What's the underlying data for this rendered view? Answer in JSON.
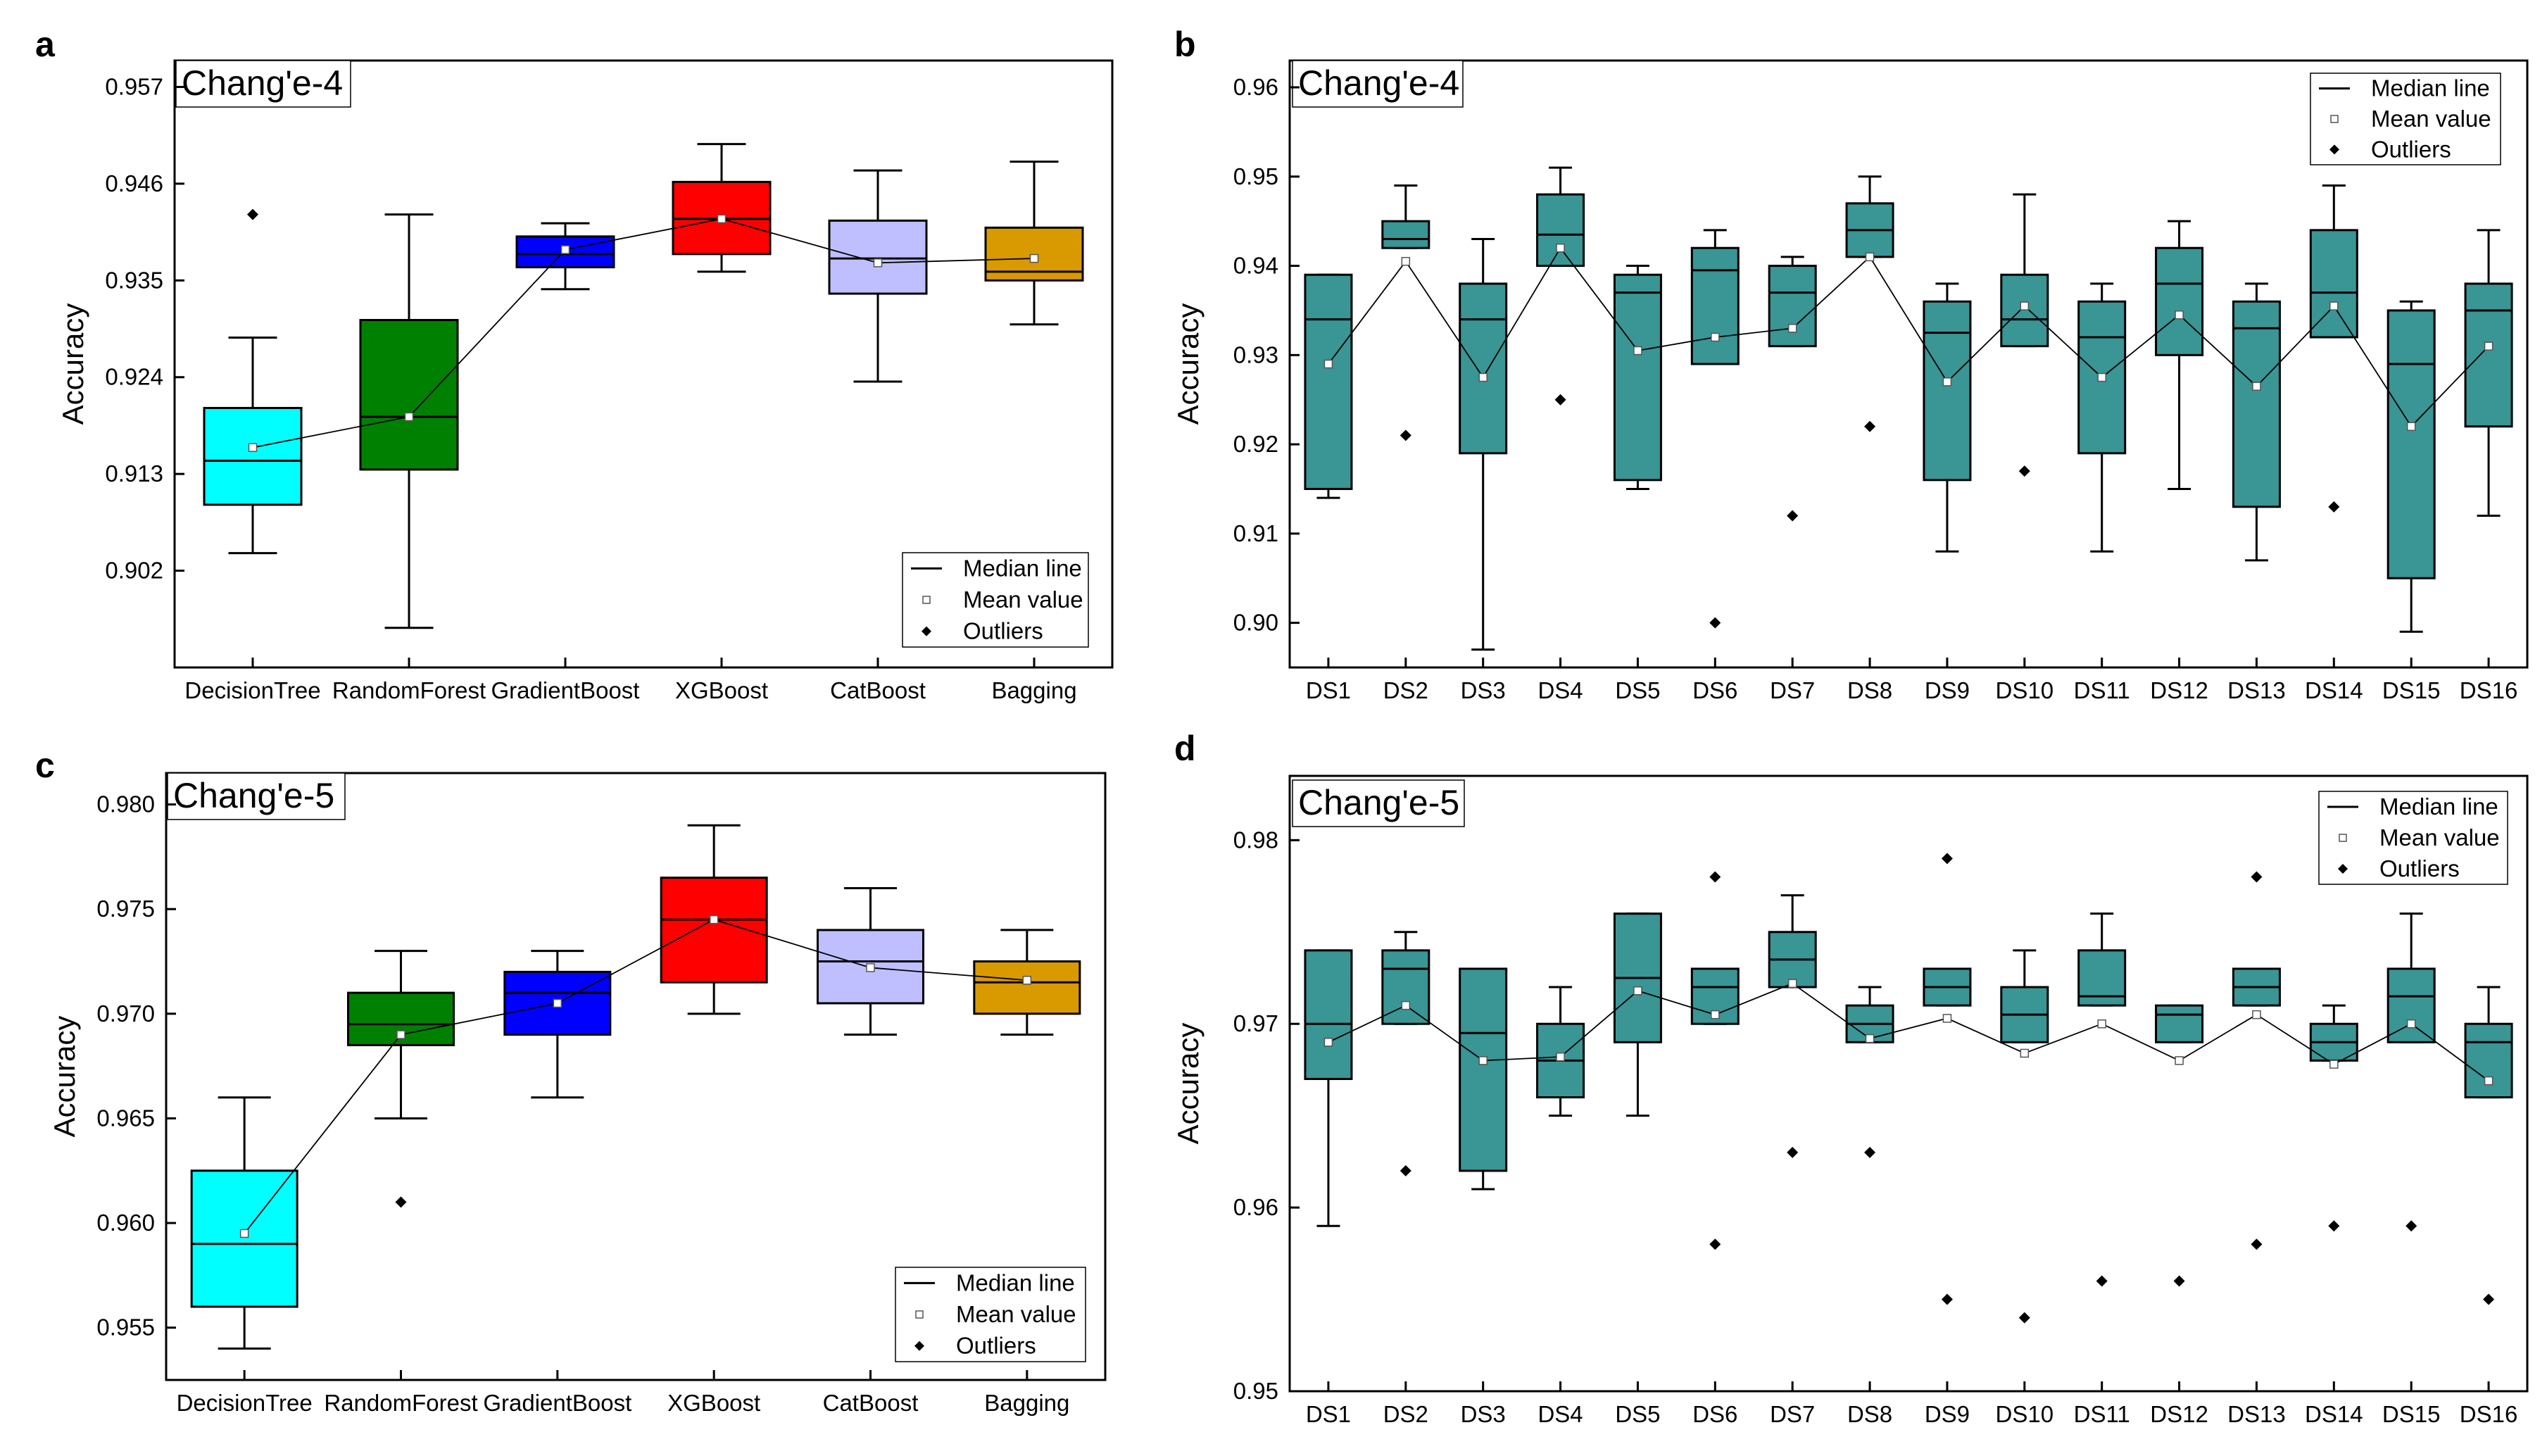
{
  "figure": {
    "panels": [
      {
        "letter": "a"
      },
      {
        "letter": "b"
      },
      {
        "letter": "c"
      },
      {
        "letter": "d"
      }
    ]
  },
  "legend": {
    "median": "Median line",
    "mean": "Mean value",
    "outliers": "Outliers"
  },
  "chart_data": [
    {
      "type": "box",
      "panel": "a",
      "title": "Chang'e-4",
      "ylabel": "Accuracy",
      "ylim": [
        0.891,
        0.96
      ],
      "yticks": [
        "0.902",
        "0.913",
        "0.924",
        "0.935",
        "0.946",
        "0.957"
      ],
      "yticks_values": [
        0.902,
        0.913,
        0.924,
        0.935,
        0.946,
        0.957
      ],
      "legend_position": "bottom-right",
      "mean_line": true,
      "categories": [
        "DecisionTree",
        "RandomForest",
        "GradientBoost",
        "XGBoost",
        "CatBoost",
        "Bagging"
      ],
      "colors": [
        "#00ffff",
        "#008000",
        "#0000ff",
        "#ff0000",
        "#bfbfff",
        "#d99a00"
      ],
      "boxes": [
        {
          "whisker_low": 0.904,
          "q1": 0.9095,
          "median": 0.9145,
          "q3": 0.9205,
          "whisker_high": 0.9285,
          "mean": 0.916,
          "outliers": [
            0.9425
          ]
        },
        {
          "whisker_low": 0.8955,
          "q1": 0.9135,
          "median": 0.9195,
          "q3": 0.9305,
          "whisker_high": 0.9425,
          "mean": 0.9195,
          "outliers": []
        },
        {
          "whisker_low": 0.934,
          "q1": 0.9365,
          "median": 0.938,
          "q3": 0.94,
          "whisker_high": 0.9415,
          "mean": 0.9385,
          "outliers": []
        },
        {
          "whisker_low": 0.936,
          "q1": 0.938,
          "median": 0.942,
          "q3": 0.9462,
          "whisker_high": 0.9505,
          "mean": 0.942,
          "outliers": []
        },
        {
          "whisker_low": 0.9235,
          "q1": 0.9335,
          "median": 0.9375,
          "q3": 0.9418,
          "whisker_high": 0.9475,
          "mean": 0.937,
          "outliers": []
        },
        {
          "whisker_low": 0.93,
          "q1": 0.935,
          "median": 0.936,
          "q3": 0.941,
          "whisker_high": 0.9485,
          "mean": 0.9375,
          "outliers": []
        }
      ]
    },
    {
      "type": "box",
      "panel": "b",
      "title": "Chang'e-4",
      "ylabel": "Accuracy",
      "ylim": [
        0.895,
        0.963
      ],
      "yticks": [
        "0.90",
        "0.91",
        "0.92",
        "0.93",
        "0.94",
        "0.95",
        "0.96"
      ],
      "yticks_values": [
        0.9,
        0.91,
        0.92,
        0.93,
        0.94,
        0.95,
        0.96
      ],
      "legend_position": "top-right",
      "mean_line": true,
      "categories": [
        "DS1",
        "DS2",
        "DS3",
        "DS4",
        "DS5",
        "DS6",
        "DS7",
        "DS8",
        "DS9",
        "DS10",
        "DS11",
        "DS12",
        "DS13",
        "DS14",
        "DS15",
        "DS16"
      ],
      "colors": [
        "#3a9595"
      ],
      "boxes": [
        {
          "whisker_low": 0.914,
          "q1": 0.915,
          "median": 0.934,
          "q3": 0.939,
          "whisker_high": 0.939,
          "mean": 0.929,
          "outliers": []
        },
        {
          "whisker_low": 0.942,
          "q1": 0.942,
          "median": 0.943,
          "q3": 0.945,
          "whisker_high": 0.949,
          "mean": 0.9405,
          "outliers": [
            0.921
          ]
        },
        {
          "whisker_low": 0.897,
          "q1": 0.919,
          "median": 0.934,
          "q3": 0.938,
          "whisker_high": 0.943,
          "mean": 0.9275,
          "outliers": []
        },
        {
          "whisker_low": 0.94,
          "q1": 0.94,
          "median": 0.9435,
          "q3": 0.948,
          "whisker_high": 0.951,
          "mean": 0.942,
          "outliers": [
            0.925
          ]
        },
        {
          "whisker_low": 0.915,
          "q1": 0.916,
          "median": 0.937,
          "q3": 0.939,
          "whisker_high": 0.94,
          "mean": 0.9305,
          "outliers": []
        },
        {
          "whisker_low": 0.929,
          "q1": 0.929,
          "median": 0.9395,
          "q3": 0.942,
          "whisker_high": 0.944,
          "mean": 0.932,
          "outliers": [
            0.9
          ]
        },
        {
          "whisker_low": 0.931,
          "q1": 0.931,
          "median": 0.937,
          "q3": 0.94,
          "whisker_high": 0.941,
          "mean": 0.933,
          "outliers": [
            0.912
          ]
        },
        {
          "whisker_low": 0.941,
          "q1": 0.941,
          "median": 0.944,
          "q3": 0.947,
          "whisker_high": 0.95,
          "mean": 0.941,
          "outliers": [
            0.922
          ]
        },
        {
          "whisker_low": 0.908,
          "q1": 0.916,
          "median": 0.9325,
          "q3": 0.936,
          "whisker_high": 0.938,
          "mean": 0.927,
          "outliers": []
        },
        {
          "whisker_low": 0.931,
          "q1": 0.931,
          "median": 0.934,
          "q3": 0.939,
          "whisker_high": 0.948,
          "mean": 0.9355,
          "outliers": [
            0.917
          ]
        },
        {
          "whisker_low": 0.908,
          "q1": 0.919,
          "median": 0.932,
          "q3": 0.936,
          "whisker_high": 0.938,
          "mean": 0.9275,
          "outliers": []
        },
        {
          "whisker_low": 0.915,
          "q1": 0.93,
          "median": 0.938,
          "q3": 0.942,
          "whisker_high": 0.945,
          "mean": 0.9345,
          "outliers": []
        },
        {
          "whisker_low": 0.907,
          "q1": 0.913,
          "median": 0.933,
          "q3": 0.936,
          "whisker_high": 0.938,
          "mean": 0.9265,
          "outliers": []
        },
        {
          "whisker_low": 0.932,
          "q1": 0.932,
          "median": 0.937,
          "q3": 0.944,
          "whisker_high": 0.949,
          "mean": 0.9355,
          "outliers": [
            0.913
          ]
        },
        {
          "whisker_low": 0.899,
          "q1": 0.905,
          "median": 0.929,
          "q3": 0.935,
          "whisker_high": 0.936,
          "mean": 0.922,
          "outliers": []
        },
        {
          "whisker_low": 0.912,
          "q1": 0.922,
          "median": 0.935,
          "q3": 0.938,
          "whisker_high": 0.944,
          "mean": 0.931,
          "outliers": []
        }
      ]
    },
    {
      "type": "box",
      "panel": "c",
      "title": "Chang'e-5",
      "ylabel": "Accuracy",
      "ylim": [
        0.9525,
        0.9815
      ],
      "yticks": [
        "0.955",
        "0.960",
        "0.965",
        "0.970",
        "0.975",
        "0.980"
      ],
      "yticks_values": [
        0.955,
        0.96,
        0.965,
        0.97,
        0.975,
        0.98
      ],
      "legend_position": "bottom-right",
      "mean_line": true,
      "categories": [
        "DecisionTree",
        "RandomForest",
        "GradientBoost",
        "XGBoost",
        "CatBoost",
        "Bagging"
      ],
      "colors": [
        "#00ffff",
        "#008000",
        "#0000ff",
        "#ff0000",
        "#bfbfff",
        "#d99a00"
      ],
      "boxes": [
        {
          "whisker_low": 0.954,
          "q1": 0.956,
          "median": 0.959,
          "q3": 0.9625,
          "whisker_high": 0.966,
          "mean": 0.9595,
          "outliers": []
        },
        {
          "whisker_low": 0.965,
          "q1": 0.9685,
          "median": 0.9695,
          "q3": 0.971,
          "whisker_high": 0.973,
          "mean": 0.969,
          "outliers": [
            0.961
          ]
        },
        {
          "whisker_low": 0.966,
          "q1": 0.969,
          "median": 0.971,
          "q3": 0.972,
          "whisker_high": 0.973,
          "mean": 0.9705,
          "outliers": []
        },
        {
          "whisker_low": 0.97,
          "q1": 0.9715,
          "median": 0.9745,
          "q3": 0.9765,
          "whisker_high": 0.979,
          "mean": 0.9745,
          "outliers": []
        },
        {
          "whisker_low": 0.969,
          "q1": 0.9705,
          "median": 0.9725,
          "q3": 0.974,
          "whisker_high": 0.976,
          "mean": 0.9722,
          "outliers": []
        },
        {
          "whisker_low": 0.969,
          "q1": 0.97,
          "median": 0.9715,
          "q3": 0.9725,
          "whisker_high": 0.974,
          "mean": 0.9716,
          "outliers": []
        }
      ]
    },
    {
      "type": "box",
      "panel": "d",
      "title": "Chang'e-5",
      "ylabel": "Accuracy",
      "ylim": [
        0.95,
        0.9835
      ],
      "yticks": [
        "0.95",
        "0.96",
        "0.97",
        "0.98"
      ],
      "yticks_values": [
        0.95,
        0.96,
        0.97,
        0.98
      ],
      "legend_position": "top-right",
      "mean_line": true,
      "categories": [
        "DS1",
        "DS2",
        "DS3",
        "DS4",
        "DS5",
        "DS6",
        "DS7",
        "DS8",
        "DS9",
        "DS10",
        "DS11",
        "DS12",
        "DS13",
        "DS14",
        "DS15",
        "DS16"
      ],
      "colors": [
        "#3a9595"
      ],
      "boxes": [
        {
          "whisker_low": 0.959,
          "q1": 0.967,
          "median": 0.97,
          "q3": 0.974,
          "whisker_high": 0.974,
          "mean": 0.969,
          "outliers": []
        },
        {
          "whisker_low": 0.97,
          "q1": 0.97,
          "median": 0.973,
          "q3": 0.974,
          "whisker_high": 0.975,
          "mean": 0.971,
          "outliers": [
            0.962
          ]
        },
        {
          "whisker_low": 0.961,
          "q1": 0.962,
          "median": 0.9695,
          "q3": 0.973,
          "whisker_high": 0.973,
          "mean": 0.968,
          "outliers": []
        },
        {
          "whisker_low": 0.965,
          "q1": 0.966,
          "median": 0.968,
          "q3": 0.97,
          "whisker_high": 0.972,
          "mean": 0.9682,
          "outliers": []
        },
        {
          "whisker_low": 0.965,
          "q1": 0.969,
          "median": 0.9725,
          "q3": 0.976,
          "whisker_high": 0.976,
          "mean": 0.9718,
          "outliers": []
        },
        {
          "whisker_low": 0.97,
          "q1": 0.97,
          "median": 0.972,
          "q3": 0.973,
          "whisker_high": 0.973,
          "mean": 0.9705,
          "outliers": [
            0.978,
            0.958
          ]
        },
        {
          "whisker_low": 0.972,
          "q1": 0.972,
          "median": 0.9735,
          "q3": 0.975,
          "whisker_high": 0.977,
          "mean": 0.9722,
          "outliers": [
            0.963
          ]
        },
        {
          "whisker_low": 0.969,
          "q1": 0.969,
          "median": 0.97,
          "q3": 0.971,
          "whisker_high": 0.972,
          "mean": 0.9692,
          "outliers": [
            0.963
          ]
        },
        {
          "whisker_low": 0.971,
          "q1": 0.971,
          "median": 0.972,
          "q3": 0.973,
          "whisker_high": 0.973,
          "mean": 0.9703,
          "outliers": [
            0.979,
            0.955
          ]
        },
        {
          "whisker_low": 0.969,
          "q1": 0.969,
          "median": 0.9705,
          "q3": 0.972,
          "whisker_high": 0.974,
          "mean": 0.9684,
          "outliers": [
            0.954
          ]
        },
        {
          "whisker_low": 0.971,
          "q1": 0.971,
          "median": 0.9715,
          "q3": 0.974,
          "whisker_high": 0.976,
          "mean": 0.97,
          "outliers": [
            0.956
          ]
        },
        {
          "whisker_low": 0.969,
          "q1": 0.969,
          "median": 0.9705,
          "q3": 0.971,
          "whisker_high": 0.971,
          "mean": 0.968,
          "outliers": [
            0.956
          ]
        },
        {
          "whisker_low": 0.971,
          "q1": 0.971,
          "median": 0.972,
          "q3": 0.973,
          "whisker_high": 0.973,
          "mean": 0.9705,
          "outliers": [
            0.978,
            0.958
          ]
        },
        {
          "whisker_low": 0.968,
          "q1": 0.968,
          "median": 0.969,
          "q3": 0.97,
          "whisker_high": 0.971,
          "mean": 0.9678,
          "outliers": [
            0.959
          ]
        },
        {
          "whisker_low": 0.969,
          "q1": 0.969,
          "median": 0.9715,
          "q3": 0.973,
          "whisker_high": 0.976,
          "mean": 0.97,
          "outliers": [
            0.959
          ]
        },
        {
          "whisker_low": 0.966,
          "q1": 0.966,
          "median": 0.969,
          "q3": 0.97,
          "whisker_high": 0.972,
          "mean": 0.9669,
          "outliers": [
            0.955
          ]
        }
      ]
    }
  ]
}
